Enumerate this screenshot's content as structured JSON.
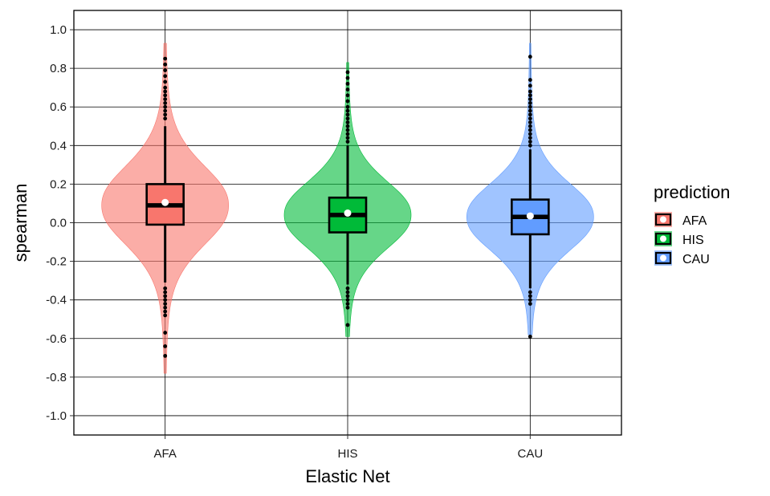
{
  "chart_data": {
    "type": "violin",
    "xlabel": "Elastic Net",
    "ylabel": "spearman",
    "ylim": [
      -1.1,
      1.1
    ],
    "yticks": [
      -1.0,
      -0.8,
      -0.6,
      -0.4,
      -0.2,
      0.0,
      0.2,
      0.4,
      0.6,
      0.8,
      1.0
    ],
    "ytick_labels": [
      "-1.0",
      "-0.8",
      "-0.6",
      "-0.4",
      "-0.2",
      "0.0",
      "0.2",
      "0.4",
      "0.6",
      "0.8",
      "1.0"
    ],
    "categories": [
      "AFA",
      "HIS",
      "CAU"
    ],
    "grid": true,
    "legend": {
      "title": "prediction",
      "position": "right",
      "entries": [
        "AFA",
        "HIS",
        "CAU"
      ]
    },
    "series": [
      {
        "name": "AFA",
        "violin_color": "#F8766D",
        "box_color": "#F8766D",
        "range": [
          -0.78,
          0.93
        ],
        "box": {
          "q1": -0.01,
          "median": 0.09,
          "q3": 0.2,
          "whisker_low": -0.31,
          "whisker_high": 0.5
        },
        "mean": 0.105,
        "outliers": [
          0.85,
          0.82,
          0.79,
          0.76,
          0.73,
          0.7,
          0.68,
          0.66,
          0.64,
          0.62,
          0.6,
          0.58,
          0.56,
          0.54,
          -0.34,
          -0.36,
          -0.38,
          -0.4,
          -0.42,
          -0.44,
          -0.46,
          -0.48,
          -0.57,
          -0.64,
          -0.69
        ]
      },
      {
        "name": "HIS",
        "violin_color": "#00BA38",
        "box_color": "#00BA38",
        "range": [
          -0.59,
          0.83
        ],
        "box": {
          "q1": -0.05,
          "median": 0.04,
          "q3": 0.13,
          "whisker_low": -0.32,
          "whisker_high": 0.4
        },
        "mean": 0.05,
        "outliers": [
          0.78,
          0.75,
          0.72,
          0.69,
          0.66,
          0.63,
          0.6,
          0.58,
          0.56,
          0.54,
          0.52,
          0.5,
          0.48,
          0.46,
          0.44,
          0.42,
          -0.34,
          -0.36,
          -0.38,
          -0.4,
          -0.42,
          -0.44,
          -0.53
        ]
      },
      {
        "name": "CAU",
        "violin_color": "#619CFF",
        "box_color": "#619CFF",
        "range": [
          -0.58,
          0.93
        ],
        "box": {
          "q1": -0.06,
          "median": 0.03,
          "q3": 0.12,
          "whisker_low": -0.34,
          "whisker_high": 0.38
        },
        "mean": 0.035,
        "outliers": [
          0.86,
          0.74,
          0.71,
          0.68,
          0.66,
          0.64,
          0.62,
          0.6,
          0.58,
          0.56,
          0.54,
          0.52,
          0.5,
          0.48,
          0.46,
          0.44,
          0.42,
          0.4,
          -0.36,
          -0.38,
          -0.4,
          -0.42,
          -0.59
        ]
      }
    ]
  }
}
